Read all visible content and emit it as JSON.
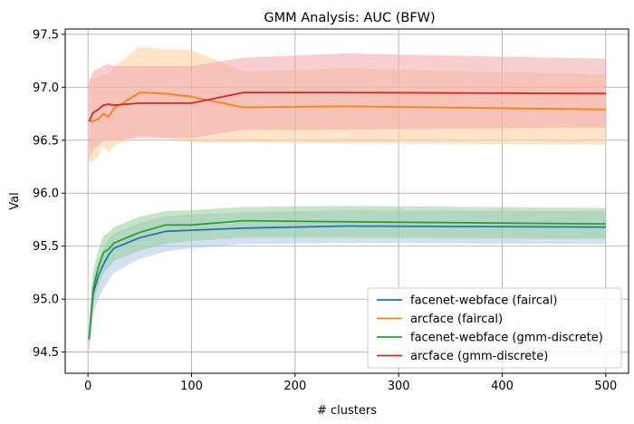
{
  "chart_data": {
    "type": "line",
    "title": "GMM Analysis: AUC (BFW)",
    "xlabel": "# clusters",
    "ylabel": "Val",
    "xlim": [
      -22,
      522
    ],
    "ylim": [
      94.3,
      97.55
    ],
    "xticks": [
      0,
      100,
      200,
      300,
      400,
      500
    ],
    "yticks": [
      94.5,
      95.0,
      95.5,
      96.0,
      96.5,
      97.0,
      97.5
    ],
    "ytick_labels": [
      "94.5",
      "95.0",
      "95.5",
      "96.0",
      "96.5",
      "97.0",
      "97.5"
    ],
    "grid": true,
    "legend_position": "lower-right",
    "series": [
      {
        "name": "facenet-webface (faircal)",
        "color": "#1f77b4",
        "x": [
          1,
          5,
          10,
          15,
          20,
          25,
          50,
          75,
          100,
          150,
          250,
          500
        ],
        "y": [
          94.62,
          95.05,
          95.22,
          95.33,
          95.42,
          95.48,
          95.58,
          95.64,
          95.65,
          95.67,
          95.69,
          95.68
        ],
        "lower": [
          94.5,
          94.85,
          95.0,
          95.1,
          95.18,
          95.25,
          95.38,
          95.45,
          95.48,
          95.52,
          95.53,
          95.52
        ],
        "upper": [
          94.75,
          95.2,
          95.38,
          95.48,
          95.57,
          95.62,
          95.72,
          95.78,
          95.8,
          95.82,
          95.84,
          95.83
        ]
      },
      {
        "name": "arcface (faircal)",
        "color": "#ff7f0e",
        "x": [
          1,
          5,
          10,
          15,
          20,
          25,
          50,
          75,
          100,
          150,
          250,
          500
        ],
        "y": [
          96.68,
          96.68,
          96.7,
          96.75,
          96.72,
          96.8,
          96.95,
          96.94,
          96.91,
          96.81,
          96.82,
          96.79
        ],
        "lower": [
          96.3,
          96.3,
          96.35,
          96.45,
          96.38,
          96.45,
          96.55,
          96.52,
          96.48,
          96.48,
          96.47,
          96.46
        ],
        "upper": [
          97.08,
          97.08,
          97.1,
          97.12,
          97.12,
          97.2,
          97.38,
          97.36,
          97.35,
          97.15,
          97.18,
          97.12
        ]
      },
      {
        "name": "facenet-webface (gmm-discrete)",
        "color": "#2ca02c",
        "x": [
          1,
          5,
          10,
          15,
          20,
          25,
          50,
          75,
          100,
          150,
          250,
          500
        ],
        "y": [
          94.62,
          95.1,
          95.3,
          95.44,
          95.47,
          95.53,
          95.63,
          95.7,
          95.7,
          95.74,
          95.73,
          95.71
        ],
        "lower": [
          94.55,
          94.95,
          95.12,
          95.25,
          95.3,
          95.36,
          95.46,
          95.52,
          95.55,
          95.58,
          95.58,
          95.57
        ],
        "upper": [
          94.72,
          95.28,
          95.47,
          95.6,
          95.63,
          95.68,
          95.78,
          95.83,
          95.84,
          95.87,
          95.88,
          95.86
        ]
      },
      {
        "name": "arcface (gmm-discrete)",
        "color": "#d62728",
        "x": [
          1,
          5,
          10,
          15,
          20,
          25,
          50,
          75,
          100,
          150,
          250,
          500
        ],
        "y": [
          96.68,
          96.76,
          96.79,
          96.83,
          96.84,
          96.83,
          96.85,
          96.85,
          96.85,
          96.95,
          96.95,
          96.94
        ],
        "lower": [
          96.32,
          96.42,
          96.45,
          96.5,
          96.5,
          96.5,
          96.52,
          96.52,
          96.52,
          96.6,
          96.6,
          96.62
        ],
        "upper": [
          97.05,
          97.15,
          97.18,
          97.2,
          97.22,
          97.2,
          97.2,
          97.2,
          97.2,
          97.28,
          97.32,
          97.27
        ]
      }
    ],
    "band_colors": [
      "#aec7e8",
      "#ffcc99",
      "#98d098",
      "#f0a8aa"
    ],
    "band_opacity": 0.55
  }
}
